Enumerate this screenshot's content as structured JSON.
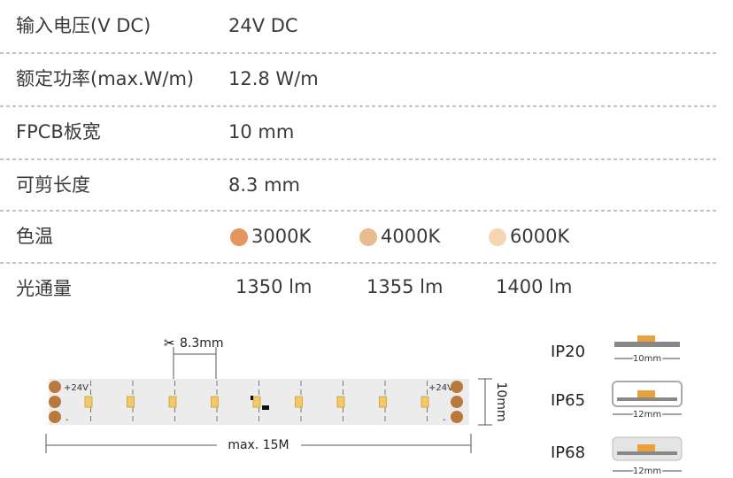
{
  "specs": [
    {
      "label": "输入电压(V DC)",
      "value": "24V DC"
    },
    {
      "label": "额定功率(max.W/m)",
      "value": "12.8 W/m"
    },
    {
      "label": "FPCB板宽",
      "value": "10 mm"
    },
    {
      "label": "可剪长度",
      "value": "8.3 mm"
    }
  ],
  "color_temperature": {
    "label": "色温",
    "options": [
      {
        "color": "#e3965e",
        "text": "3000K"
      },
      {
        "color": "#e9bb90",
        "text": "4000K"
      },
      {
        "color": "#f5d5b2",
        "text": "6000K"
      }
    ]
  },
  "luminous_flux": {
    "label": "光通量",
    "values": [
      "1350 lm",
      "1355 lm",
      "1400 lm"
    ]
  },
  "diagram": {
    "cut_length": "8.3mm",
    "positive_left": "+24V",
    "positive_right": "+24V",
    "negative_left": "-",
    "negative_right": "-",
    "max_length": "max. 15M",
    "width": "10mm"
  },
  "ip_ratings": [
    {
      "name": "IP20",
      "width": "10mm"
    },
    {
      "name": "IP65",
      "width": "12mm"
    },
    {
      "name": "IP68",
      "width": "12mm"
    }
  ]
}
